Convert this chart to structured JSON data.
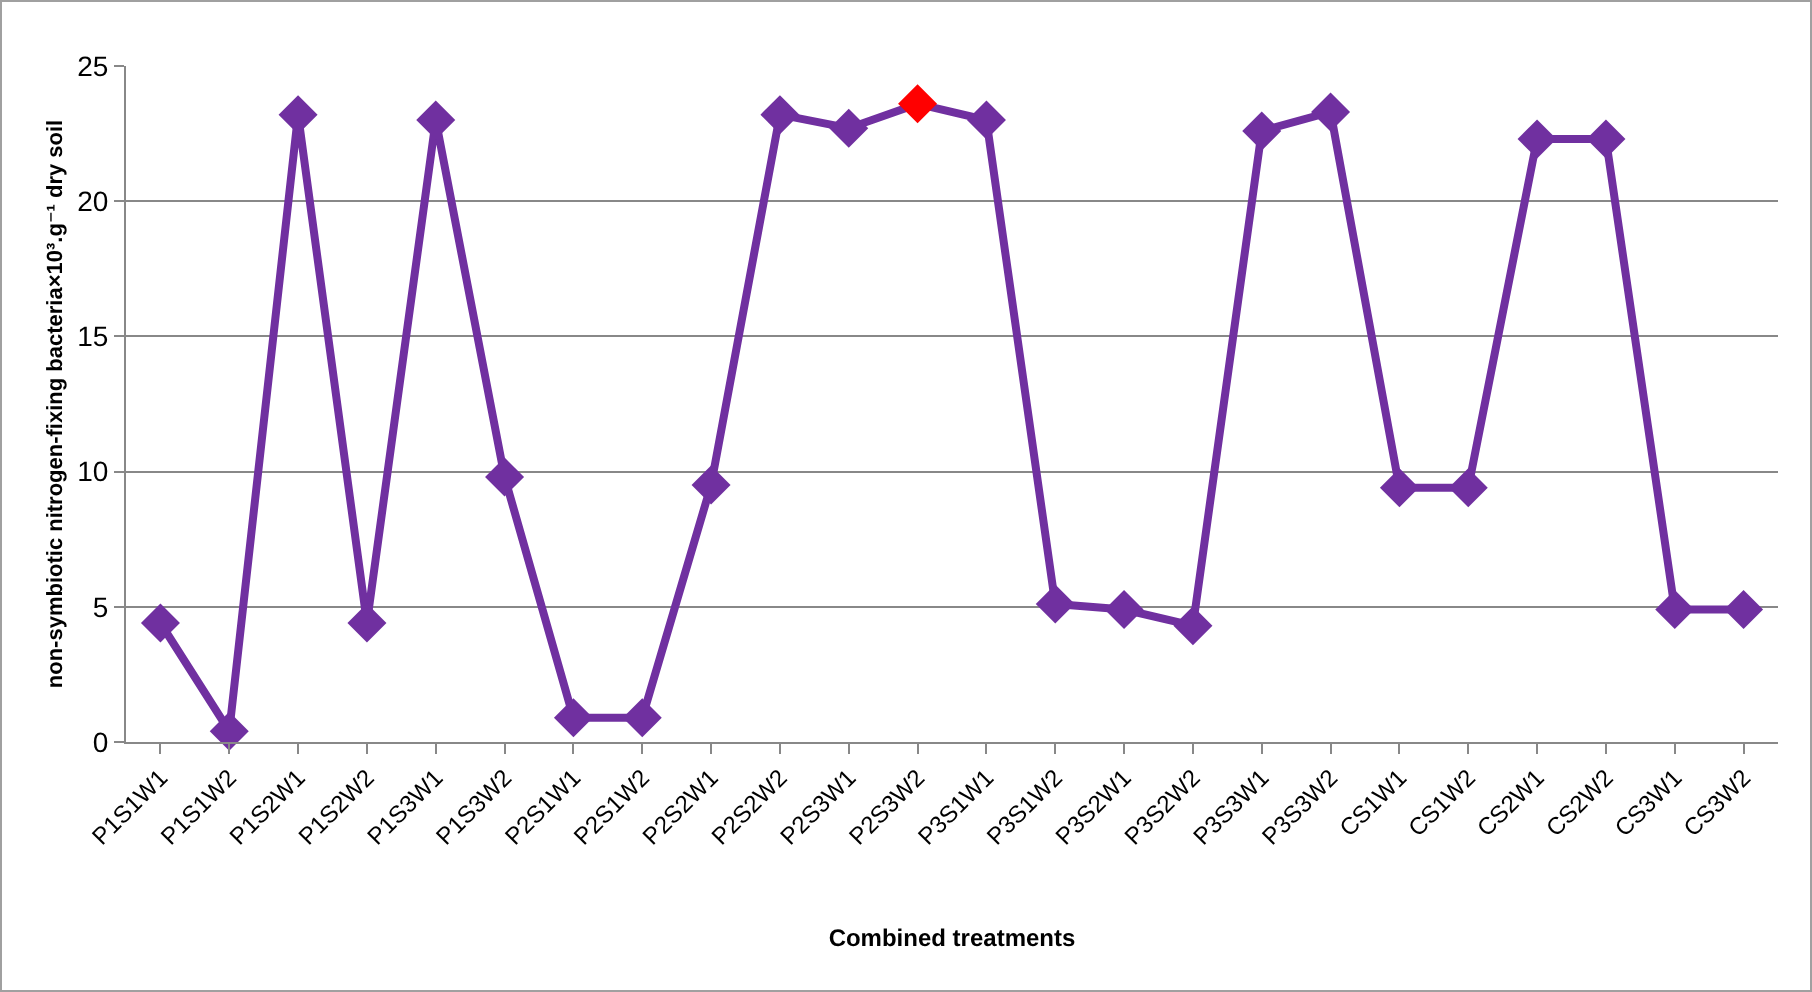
{
  "chart_data": {
    "type": "line",
    "xlabel": "Combined treatments",
    "ylabel": "non-symbiotic nitrogen-fixing bacteria×10³.g⁻¹ dry soil",
    "categories": [
      "P1S1W1",
      "P1S1W2",
      "P1S2W1",
      "P1S2W2",
      "P1S3W1",
      "P1S3W2",
      "P2S1W1",
      "P2S1W2",
      "P2S2W1",
      "P2S2W2",
      "P2S3W1",
      "P2S3W2",
      "P3S1W1",
      "P3S1W2",
      "P3S2W1",
      "P3S2W2",
      "P3S3W1",
      "P3S3W2",
      "CS1W1",
      "CS1W2",
      "CS2W1",
      "CS2W2",
      "CS3W1",
      "CS3W2"
    ],
    "series": [
      {
        "color": "#7030a0",
        "values": [
          4.4,
          0.4,
          23.2,
          4.4,
          23.0,
          9.8,
          0.9,
          0.9,
          9.5,
          23.2,
          22.7,
          23.6,
          23.0,
          5.1,
          4.9,
          4.3,
          22.6,
          23.3,
          9.4,
          9.4,
          22.3,
          22.3,
          4.9,
          4.9
        ],
        "colors": [
          "#7030a0",
          "#7030a0",
          "#7030a0",
          "#7030a0",
          "#7030a0",
          "#7030a0",
          "#7030a0",
          "#7030a0",
          "#7030a0",
          "#7030a0",
          "#7030a0",
          "#ff0000",
          "#7030a0",
          "#7030a0",
          "#7030a0",
          "#7030a0",
          "#7030a0",
          "#7030a0",
          "#7030a0",
          "#7030a0",
          "#7030a0",
          "#7030a0",
          "#7030a0",
          "#7030a0"
        ]
      }
    ],
    "ylim": [
      0,
      25
    ],
    "yticks": [
      0,
      5,
      10,
      15,
      20,
      25
    ],
    "grid": "y",
    "marker": "diamond",
    "line_style": "solid"
  }
}
